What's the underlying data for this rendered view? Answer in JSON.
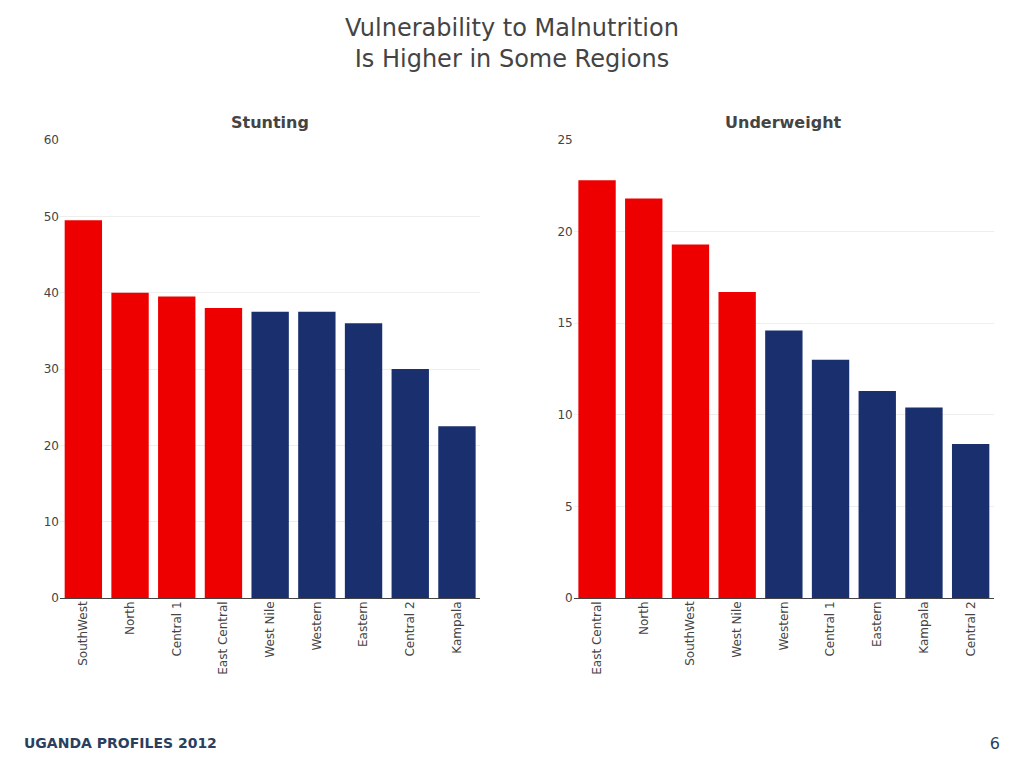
{
  "title": [
    "Vulnerability to Malnutrition",
    "Is Higher in Some Regions"
  ],
  "annotations": [
    "UGANDA PROFILES 2012",
    "6"
  ],
  "chart_data": [
    {
      "type": "bar",
      "title": "Stunting",
      "categories": [
        "SouthWest",
        "North",
        "Central 1",
        "East Central",
        "West Nile",
        "Western",
        "Eastern",
        "Central 2",
        "Kampala"
      ],
      "values": [
        49.5,
        40.0,
        39.5,
        38.0,
        37.5,
        37.5,
        36.0,
        30.0,
        22.5
      ],
      "colors": [
        "#ee0000",
        "#ee0000",
        "#ee0000",
        "#ee0000",
        "#1a2f6e",
        "#1a2f6e",
        "#1a2f6e",
        "#1a2f6e",
        "#1a2f6e"
      ],
      "ylim": [
        0,
        60
      ],
      "yticks": [
        0,
        10,
        20,
        30,
        40,
        50,
        60
      ],
      "grid": true
    },
    {
      "type": "bar",
      "title": "Underweight",
      "categories": [
        "East Central",
        "North",
        "SouthWest",
        "West Nile",
        "Western",
        "Central 1",
        "Eastern",
        "Kampala",
        "Central 2"
      ],
      "values": [
        22.8,
        21.8,
        19.3,
        16.7,
        14.6,
        13.0,
        11.3,
        10.4,
        8.4
      ],
      "colors": [
        "#ee0000",
        "#ee0000",
        "#ee0000",
        "#ee0000",
        "#1a2f6e",
        "#1a2f6e",
        "#1a2f6e",
        "#1a2f6e",
        "#1a2f6e"
      ],
      "ylim": [
        0,
        25
      ],
      "yticks": [
        0,
        5,
        10,
        15,
        20,
        25
      ],
      "grid": true
    }
  ]
}
